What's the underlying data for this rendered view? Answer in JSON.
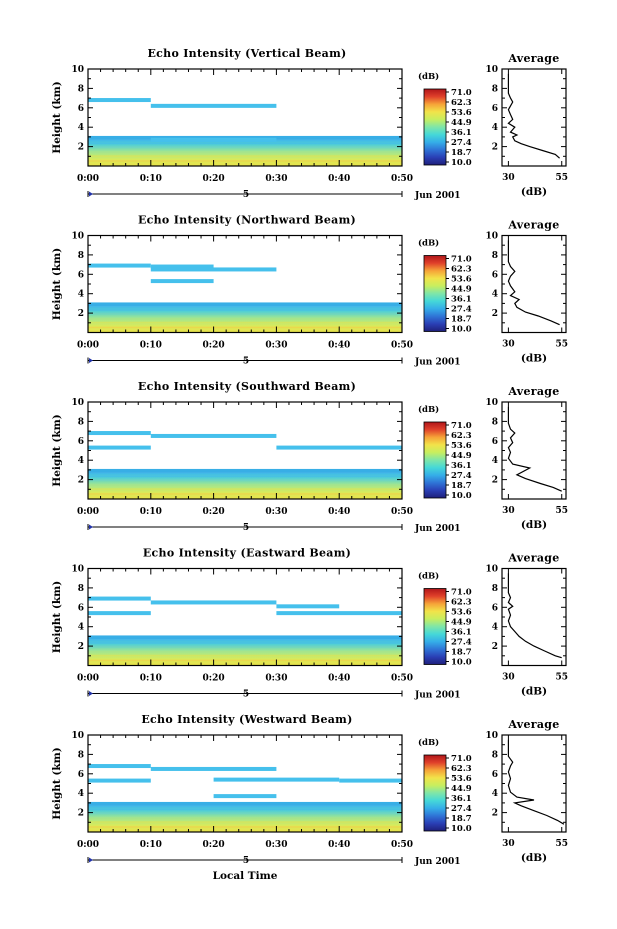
{
  "colors": {
    "cmap": [
      "#1f1f7a",
      "#2a3fb5",
      "#2f74d6",
      "#35aee8",
      "#45d8d8",
      "#7fe6a8",
      "#c8ee5f",
      "#f2e34a",
      "#f6a338",
      "#e0402a",
      "#b0151a"
    ],
    "layer_light": "#45c0ec",
    "axis": "#000000"
  },
  "x_axis": {
    "ticks": [
      "0:00",
      "0:10",
      "0:20",
      "0:30",
      "0:40",
      "0:50"
    ],
    "date_label": "Jun 2001",
    "day_label": "5",
    "local_time_label": "Local Time"
  },
  "y_axis": {
    "label": "Height (km)",
    "ticks": [
      "2",
      "4",
      "6",
      "8",
      "10"
    ]
  },
  "colorbar": {
    "unit": "(dB)",
    "ticks": [
      "71.0",
      "62.3",
      "53.6",
      "44.9",
      "36.1",
      "27.4",
      "18.7",
      "10.0"
    ]
  },
  "chart_data": [
    {
      "type": "heatmap",
      "title": "Echo Intensity (Vertical Beam)",
      "avg_title": "Average",
      "avg_xticks": [
        "30",
        "55"
      ],
      "avg_xlabel": "(dB)",
      "layers": [
        {
          "t0": 0,
          "t1": 10,
          "h": 6.8
        },
        {
          "t0": 10,
          "t1": 30,
          "h": 6.2
        },
        {
          "t0": 10,
          "t1": 30,
          "h": 2.7
        }
      ],
      "avg_profile": [
        [
          54,
          0.8
        ],
        [
          52,
          1.2
        ],
        [
          46,
          1.6
        ],
        [
          40,
          2.0
        ],
        [
          36,
          2.3
        ],
        [
          33,
          2.6
        ],
        [
          32,
          3.0
        ],
        [
          34,
          3.2
        ],
        [
          31,
          3.5
        ],
        [
          33,
          4.0
        ],
        [
          30,
          4.4
        ],
        [
          32,
          4.8
        ],
        [
          31,
          5.3
        ],
        [
          30,
          5.8
        ],
        [
          31,
          6.2
        ],
        [
          32,
          6.6
        ],
        [
          31,
          7.0
        ],
        [
          30,
          7.5
        ],
        [
          30,
          8.5
        ],
        [
          30,
          9.5
        ]
      ]
    },
    {
      "type": "heatmap",
      "title": "Echo Intensity (Northward Beam)",
      "avg_title": "Average",
      "avg_xticks": [
        "30",
        "55"
      ],
      "avg_xlabel": "(dB)",
      "layers": [
        {
          "t0": 0,
          "t1": 10,
          "h": 6.9
        },
        {
          "t0": 10,
          "t1": 20,
          "h": 6.8
        },
        {
          "t0": 10,
          "t1": 30,
          "h": 6.5
        },
        {
          "t0": 10,
          "t1": 20,
          "h": 5.3
        }
      ],
      "avg_profile": [
        [
          54,
          0.8
        ],
        [
          50,
          1.2
        ],
        [
          44,
          1.7
        ],
        [
          38,
          2.1
        ],
        [
          34,
          2.6
        ],
        [
          33,
          3.0
        ],
        [
          35,
          3.4
        ],
        [
          31,
          3.8
        ],
        [
          33,
          4.2
        ],
        [
          31,
          4.8
        ],
        [
          30,
          5.3
        ],
        [
          31,
          5.8
        ],
        [
          33,
          6.3
        ],
        [
          31,
          6.8
        ],
        [
          30,
          7.3
        ],
        [
          30,
          8.5
        ],
        [
          30,
          9.5
        ]
      ]
    },
    {
      "type": "heatmap",
      "title": "Echo Intensity (Southward Beam)",
      "avg_title": "Average",
      "avg_xticks": [
        "30",
        "55"
      ],
      "avg_xlabel": "(dB)",
      "layers": [
        {
          "t0": 0,
          "t1": 10,
          "h": 6.8
        },
        {
          "t0": 10,
          "t1": 30,
          "h": 6.5
        },
        {
          "t0": 0,
          "t1": 10,
          "h": 5.3
        },
        {
          "t0": 30,
          "t1": 50,
          "h": 5.3
        }
      ],
      "avg_profile": [
        [
          55,
          0.8
        ],
        [
          51,
          1.2
        ],
        [
          45,
          1.6
        ],
        [
          38,
          2.1
        ],
        [
          34,
          2.5
        ],
        [
          40,
          3.2
        ],
        [
          32,
          3.6
        ],
        [
          30,
          4.2
        ],
        [
          31,
          4.8
        ],
        [
          30,
          5.3
        ],
        [
          32,
          5.8
        ],
        [
          31,
          6.3
        ],
        [
          33,
          6.8
        ],
        [
          31,
          7.2
        ],
        [
          30,
          7.8
        ],
        [
          30,
          9.5
        ]
      ]
    },
    {
      "type": "heatmap",
      "title": "Echo Intensity (Eastward Beam)",
      "avg_title": "Average",
      "avg_xticks": [
        "30",
        "55"
      ],
      "avg_xlabel": "(dB)",
      "layers": [
        {
          "t0": 0,
          "t1": 10,
          "h": 6.9
        },
        {
          "t0": 10,
          "t1": 30,
          "h": 6.5
        },
        {
          "t0": 0,
          "t1": 10,
          "h": 5.4
        },
        {
          "t0": 30,
          "t1": 40,
          "h": 6.1
        },
        {
          "t0": 30,
          "t1": 50,
          "h": 5.4
        }
      ],
      "avg_profile": [
        [
          55,
          0.8
        ],
        [
          52,
          1.0
        ],
        [
          47,
          1.5
        ],
        [
          42,
          2.0
        ],
        [
          38,
          2.5
        ],
        [
          35,
          3.0
        ],
        [
          33,
          3.5
        ],
        [
          31,
          4.0
        ],
        [
          30,
          4.6
        ],
        [
          31,
          5.2
        ],
        [
          30,
          5.8
        ],
        [
          32,
          6.1
        ],
        [
          30,
          6.5
        ],
        [
          31,
          7.0
        ],
        [
          30,
          7.5
        ],
        [
          30,
          9.5
        ]
      ]
    },
    {
      "type": "heatmap",
      "title": "Echo Intensity (Westward Beam)",
      "avg_title": "Average",
      "avg_xticks": [
        "30",
        "55"
      ],
      "avg_xlabel": "(dB)",
      "layers": [
        {
          "t0": 0,
          "t1": 10,
          "h": 6.8
        },
        {
          "t0": 10,
          "t1": 30,
          "h": 6.5
        },
        {
          "t0": 0,
          "t1": 10,
          "h": 5.3
        },
        {
          "t0": 20,
          "t1": 40,
          "h": 5.4
        },
        {
          "t0": 40,
          "t1": 50,
          "h": 5.3
        },
        {
          "t0": 20,
          "t1": 30,
          "h": 3.7
        }
      ],
      "avg_profile": [
        [
          56,
          0.8
        ],
        [
          53,
          1.2
        ],
        [
          48,
          1.7
        ],
        [
          42,
          2.2
        ],
        [
          36,
          2.7
        ],
        [
          33,
          3.0
        ],
        [
          42,
          3.3
        ],
        [
          34,
          3.6
        ],
        [
          31,
          4.1
        ],
        [
          30,
          4.8
        ],
        [
          31,
          5.5
        ],
        [
          30,
          6.2
        ],
        [
          31,
          6.8
        ],
        [
          32,
          7.2
        ],
        [
          30,
          7.8
        ],
        [
          30,
          9.5
        ]
      ]
    }
  ]
}
